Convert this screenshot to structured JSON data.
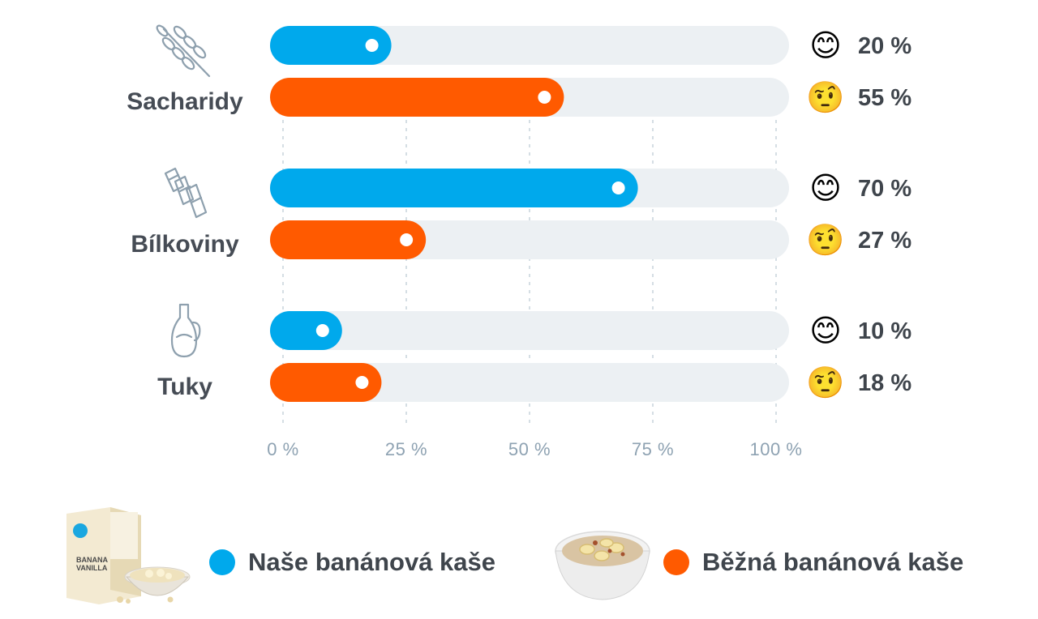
{
  "chart_data": {
    "type": "bar",
    "orientation": "horizontal",
    "categories": [
      "Sacharidy",
      "Bílkoviny",
      "Tuky"
    ],
    "category_icons": [
      "wheat-icon",
      "pasta-icon",
      "oil-bottle-icon"
    ],
    "series": [
      {
        "name": "Naše banánová kaše",
        "color": "#00a9ec",
        "values": [
          20,
          70,
          10
        ],
        "labels": [
          "20 %",
          "70 %",
          "10 %"
        ],
        "emoji": "😊"
      },
      {
        "name": "Běžná banánová kaše",
        "color": "#ff5a00",
        "values": [
          55,
          27,
          18
        ],
        "labels": [
          "55 %",
          "27 %",
          "18 %"
        ],
        "emoji": "🤨"
      }
    ],
    "xlim": [
      0,
      100
    ],
    "x_ticks": [
      0,
      25,
      50,
      75,
      100
    ],
    "x_tick_labels": [
      "0 %",
      "25 %",
      "50 %",
      "75 %",
      "100 %"
    ],
    "track_color": "#ecf0f3",
    "grid": true,
    "legend_position": "bottom"
  },
  "legend": [
    {
      "label": "Naše banánová kaše",
      "color": "#00a9ec",
      "image": "product-box-image"
    },
    {
      "label": "Běžná banánová kaše",
      "color": "#ff5a00",
      "image": "porridge-bowl-image"
    }
  ]
}
